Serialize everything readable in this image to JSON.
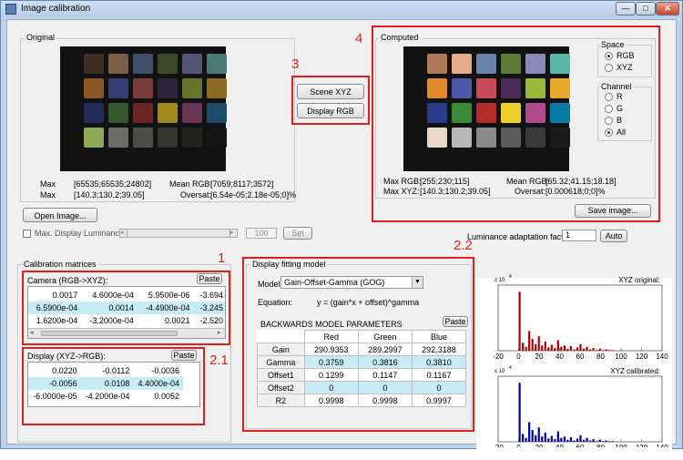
{
  "window": {
    "title": "Image calibration"
  },
  "original": {
    "legend": "Original",
    "max_label": "Max",
    "max_rgb": "[65535;65535;24802]",
    "max2_label": "Max",
    "max_xyz": "[140.3;130.2;39.05]",
    "mean_rgb_label": "Mean RGB:",
    "mean_rgb": "[7059;8117;3572]",
    "oversat_label": "Oversat:",
    "oversat": "[6.54e-05;2.18e-05;0]%"
  },
  "buttons": {
    "open_image": "Open Image...",
    "scene_xyz": "Scene XYZ",
    "display_rgb": "Display RGB",
    "save_image": "Save image...",
    "set": "Set",
    "auto": "Auto",
    "paste": "Paste"
  },
  "max_display": {
    "label": "Max. Display Luminance:",
    "value": "100"
  },
  "computed": {
    "legend": "Computed",
    "max_rgb_label": "Max RGB:",
    "max_rgb": "[255;230;115]",
    "max_xyz_label": "Max XYZ:",
    "max_xyz": "[140.3;130.2;39.05]",
    "mean_rgb_label": "Mean RGB:",
    "mean_rgb": "[65.32;41.15;18.18]",
    "oversat_label": "Oversat:",
    "oversat": "[0.000618;0;0]%"
  },
  "space": {
    "legend": "Space",
    "options": [
      "RGB",
      "XYZ"
    ],
    "selected": "RGB"
  },
  "channel": {
    "legend": "Channel",
    "options": [
      "R",
      "G",
      "B",
      "All"
    ],
    "selected": "All"
  },
  "luminance_factor": {
    "label": "Luminance adaptation factor:",
    "value": "1"
  },
  "calibration": {
    "legend": "Calibration matrices",
    "camera_label": "Camera (RGB->XYZ):",
    "camera_rows": [
      [
        "0.0017",
        "4.6000e-04",
        "5.9500e-06",
        "-3.694"
      ],
      [
        "6.5900e-04",
        "0.0014",
        "-4.4900e-04",
        "-3.245"
      ],
      [
        "1.6200e-04",
        "-3.2000e-04",
        "0.0021",
        "-2.520"
      ]
    ],
    "display_label": "Display (XYZ->RGB):",
    "display_rows": [
      [
        "0.0220",
        "-0.0112",
        "-0.0036"
      ],
      [
        "-0.0056",
        "0.0108",
        "4.4000e-04"
      ],
      [
        "-6.0000e-05",
        "-4.2000e-04",
        "0.0052"
      ]
    ]
  },
  "fitting": {
    "legend": "Display fitting model",
    "model_label": "Model:",
    "model_value": "Gain-Offset-Gamma (GOG)",
    "equation_label": "Equation:",
    "equation": "y = (gain*x + offset)^gamma",
    "params_title": "BACKWARDS MODEL PARAMETERS",
    "columns": [
      "Red",
      "Green",
      "Blue"
    ],
    "rows": [
      {
        "name": "Gain",
        "values": [
          "290.9353",
          "289.2997",
          "292.3188"
        ]
      },
      {
        "name": "Gamma",
        "values": [
          "0.3759",
          "0.3816",
          "0.3810"
        ]
      },
      {
        "name": "Offset1",
        "values": [
          "0.1299",
          "0.1147",
          "0.1167"
        ]
      },
      {
        "name": "Offset2",
        "values": [
          "0",
          "0",
          "0"
        ]
      },
      {
        "name": "R2",
        "values": [
          "0.9998",
          "0.9998",
          "0.9997"
        ]
      }
    ]
  },
  "annotations": {
    "n1": "1",
    "n21": "2.1",
    "n22": "2.2",
    "n3": "3",
    "n4": "4"
  },
  "hist_top": {
    "title": "XYZ original:",
    "exp": "x 10",
    "exp_sup": "4",
    "color": "#b00000",
    "xticks": [
      "-20",
      "0",
      "20",
      "40",
      "60",
      "80",
      "100",
      "120",
      "140"
    ]
  },
  "hist_bottom": {
    "title": "XYZ calibrated:",
    "exp": "x 10",
    "exp_sup": "4",
    "color": "#0000b0",
    "xticks": [
      "-20",
      "0",
      "20",
      "40",
      "60",
      "80",
      "100",
      "120",
      "140"
    ]
  },
  "checker_colors": [
    "#3e2c22",
    "#7a5d46",
    "#3f4f68",
    "#3d4729",
    "#545476",
    "#4c7a74",
    "#8a5524",
    "#353e74",
    "#7a3a3e",
    "#2c2438",
    "#66742e",
    "#8c6c22",
    "#232c58",
    "#36592c",
    "#6c2424",
    "#a08a1e",
    "#6a3456",
    "#1c4c6a",
    "#8ca858",
    "#6c6c68",
    "#4c4c48",
    "#34342e",
    "#222220",
    "#141414"
  ],
  "computed_colors": [
    "#b07a5a",
    "#e6ac8a",
    "#6a80a8",
    "#5a7a3a",
    "#8a8ab8",
    "#5ab8a8",
    "#e08a2c",
    "#4a5aa8",
    "#c84a5a",
    "#4a2c5a",
    "#9ab83a",
    "#e8a82a",
    "#2a3a8a",
    "#3a8a3a",
    "#b82a2a",
    "#f0d02a",
    "#b04a8a",
    "#0a7aa8",
    "#e8d8c8",
    "#b8b8b8",
    "#8a8a8a",
    "#5a5a5a",
    "#3a3a3a",
    "#1a1a1a"
  ]
}
